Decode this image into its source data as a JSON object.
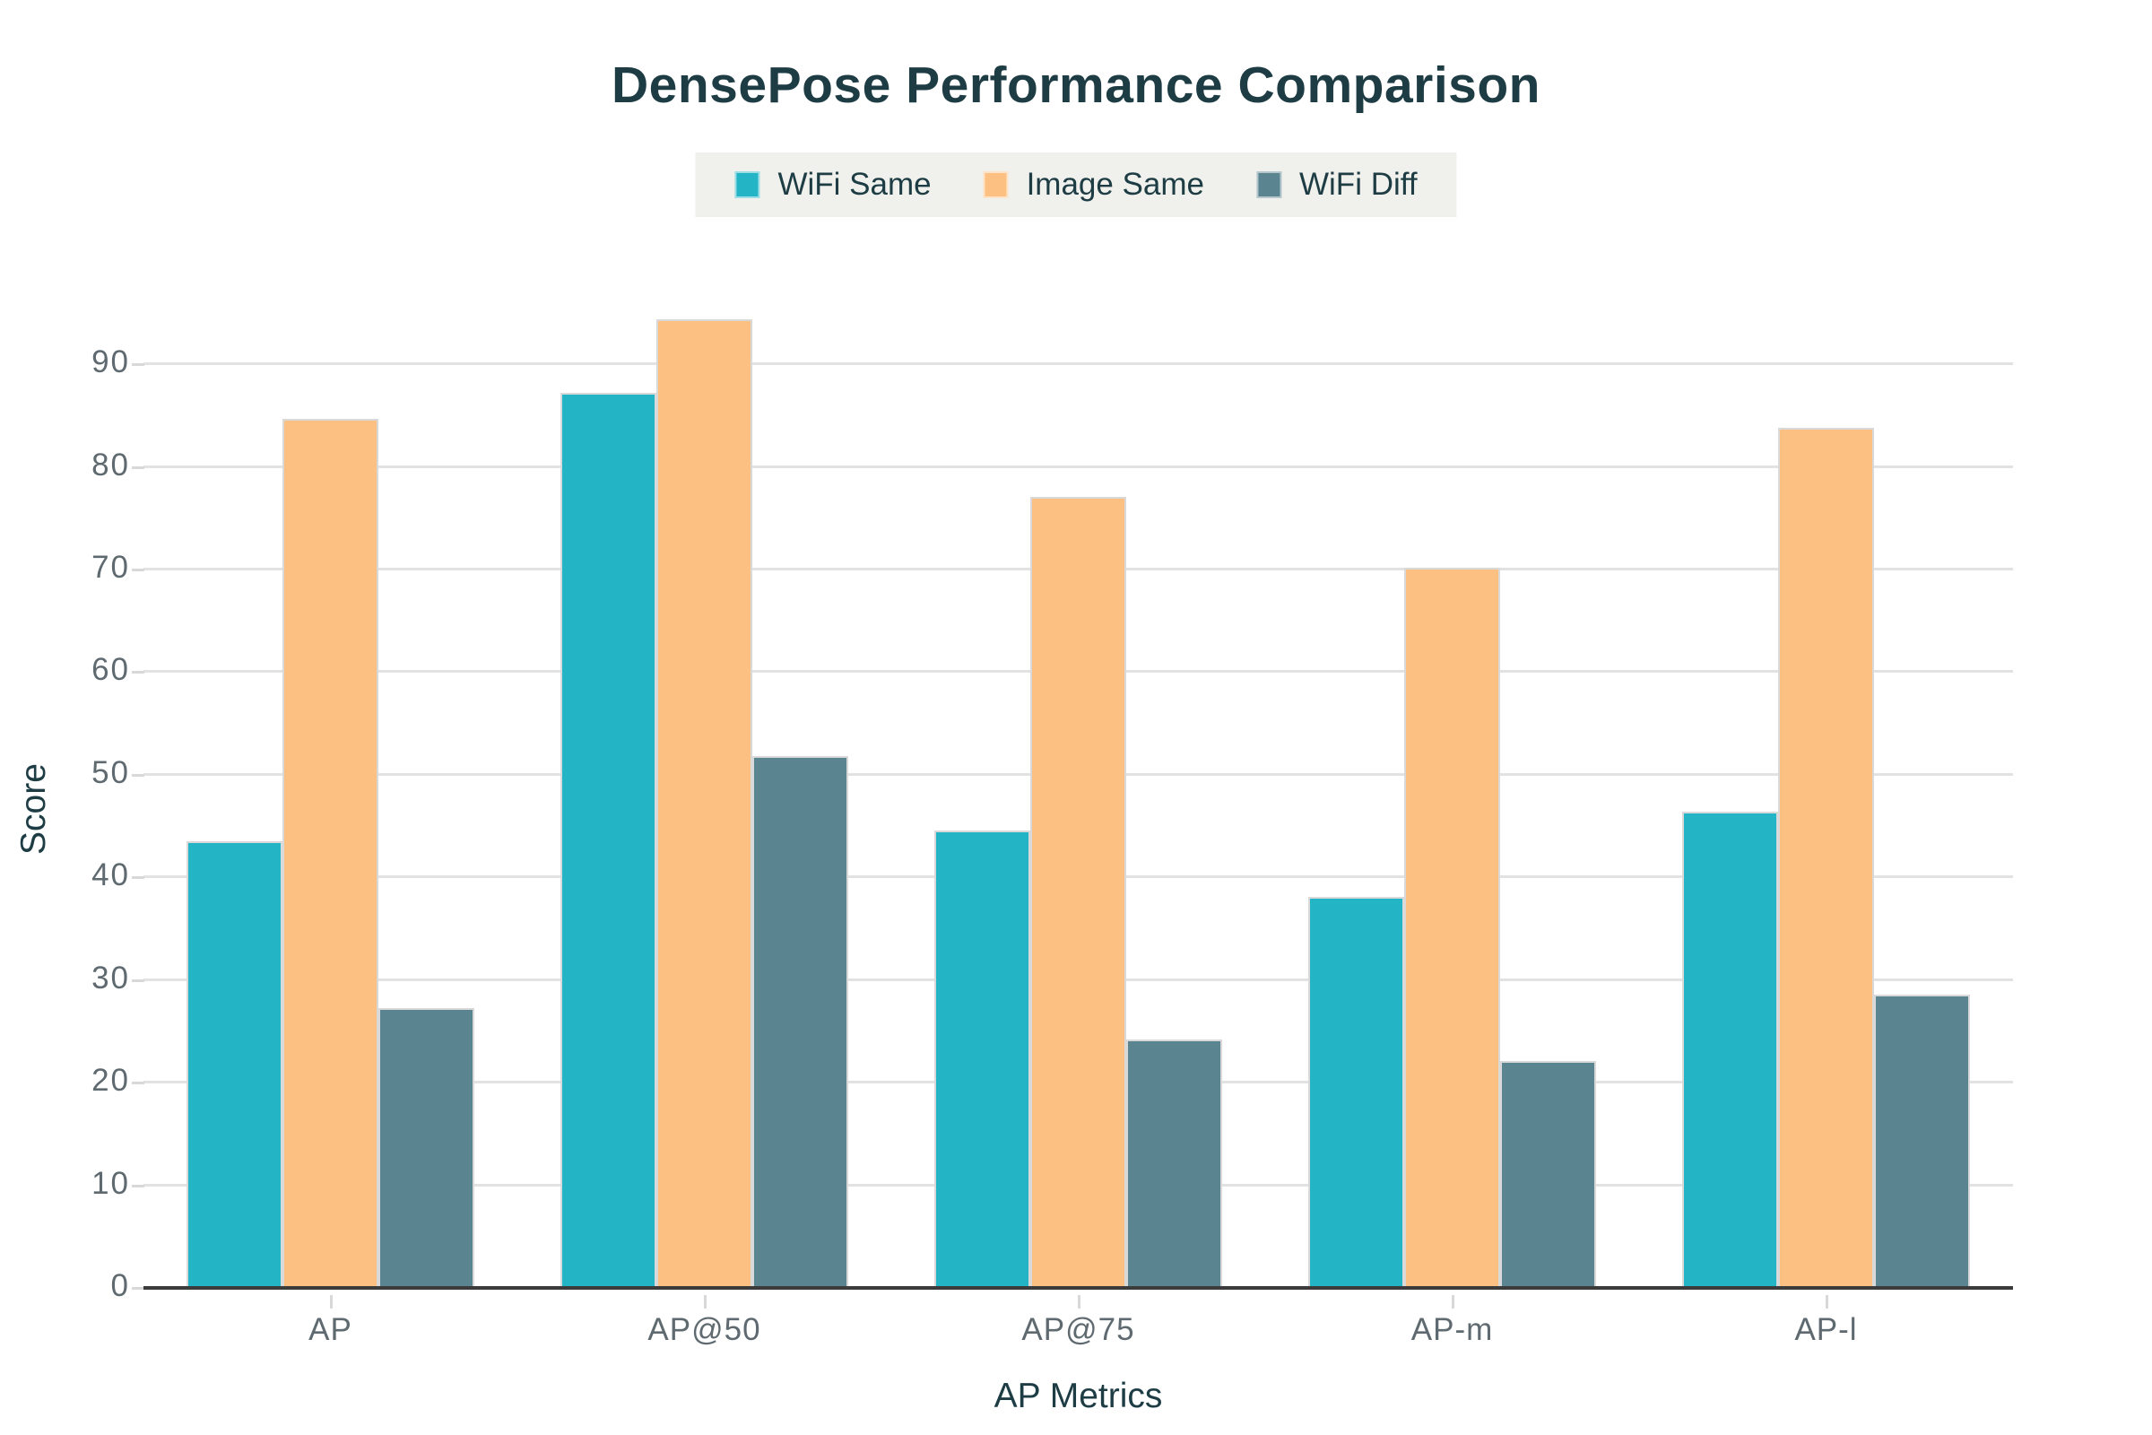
{
  "title": "DensePose Performance Comparison",
  "legend": {
    "items": [
      {
        "label": "WiFi Same",
        "color": "#23b5c6"
      },
      {
        "label": "Image Same",
        "color": "#fdc083"
      },
      {
        "label": "WiFi Diff",
        "color": "#5b8491"
      }
    ],
    "background": "#f0f1ec"
  },
  "chart_data": {
    "type": "bar",
    "title": "DensePose Performance Comparison",
    "categories": [
      "AP",
      "AP@50",
      "AP@75",
      "AP-m",
      "AP-l"
    ],
    "series": [
      {
        "name": "WiFi Same",
        "color": "#23b5c6",
        "values": [
          43.5,
          87.2,
          44.6,
          38.1,
          46.4
        ]
      },
      {
        "name": "Image Same",
        "color": "#fdc083",
        "values": [
          84.7,
          94.4,
          77.1,
          70.2,
          83.8
        ]
      },
      {
        "name": "WiFi Diff",
        "color": "#5b8491",
        "values": [
          27.3,
          51.8,
          24.2,
          22.1,
          28.6
        ]
      }
    ],
    "xlabel": "AP Metrics",
    "ylabel": "Score",
    "ylim": [
      0,
      95
    ],
    "yticks": [
      0,
      10,
      20,
      30,
      40,
      50,
      60,
      70,
      80,
      90
    ],
    "grid": true,
    "legend_position": "top"
  },
  "colors": {
    "title_text": "#1d3c44",
    "tick_text": "#5f6a70",
    "gridline": "#e2e2e2",
    "axis_line": "#3b3b3b",
    "background": "#ffffff"
  }
}
